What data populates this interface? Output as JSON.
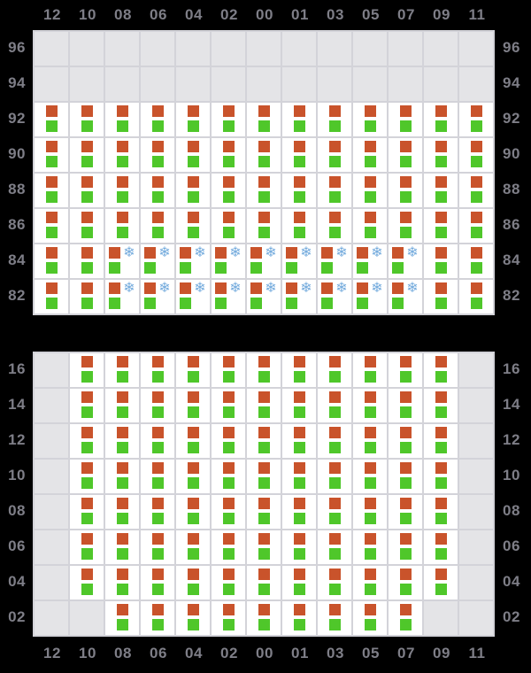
{
  "columns": [
    "12",
    "10",
    "08",
    "06",
    "04",
    "02",
    "00",
    "01",
    "03",
    "05",
    "07",
    "09",
    "11"
  ],
  "icons": {
    "snowflake_glyph": "❄",
    "orange_square": "orange-square-icon",
    "green_square": "green-square-icon"
  },
  "colors": {
    "background": "#000000",
    "empty_cell": "#e4e4e7",
    "filled_cell": "#ffffff",
    "grid_line": "#d3d3d9",
    "label_text": "#7e7e87",
    "orange": "#c9532b",
    "green": "#4fc72a",
    "snowflake_blue": "#74abdd"
  },
  "panels": [
    {
      "name": "upper",
      "rows": [
        {
          "label": "96",
          "cells": [
            "",
            "",
            "",
            "",
            "",
            "",
            "",
            "",
            "",
            "",
            "",
            "",
            ""
          ]
        },
        {
          "label": "94",
          "cells": [
            "",
            "",
            "",
            "",
            "",
            "",
            "",
            "",
            "",
            "",
            "",
            "",
            ""
          ]
        },
        {
          "label": "92",
          "cells": [
            "og",
            "og",
            "og",
            "og",
            "og",
            "og",
            "og",
            "og",
            "og",
            "og",
            "og",
            "og",
            "og"
          ]
        },
        {
          "label": "90",
          "cells": [
            "og",
            "og",
            "og",
            "og",
            "og",
            "og",
            "og",
            "og",
            "og",
            "og",
            "og",
            "og",
            "og"
          ]
        },
        {
          "label": "88",
          "cells": [
            "og",
            "og",
            "og",
            "og",
            "og",
            "og",
            "og",
            "og",
            "og",
            "og",
            "og",
            "og",
            "og"
          ]
        },
        {
          "label": "86",
          "cells": [
            "og",
            "og",
            "og",
            "og",
            "og",
            "og",
            "og",
            "og",
            "og",
            "og",
            "og",
            "og",
            "og"
          ]
        },
        {
          "label": "84",
          "cells": [
            "og",
            "og",
            "ogs",
            "ogs",
            "ogs",
            "ogs",
            "ogs",
            "ogs",
            "ogs",
            "ogs",
            "ogs",
            "og",
            "og"
          ]
        },
        {
          "label": "82",
          "cells": [
            "og",
            "og",
            "ogs",
            "ogs",
            "ogs",
            "ogs",
            "ogs",
            "ogs",
            "ogs",
            "ogs",
            "ogs",
            "og",
            "og"
          ]
        }
      ]
    },
    {
      "name": "lower",
      "rows": [
        {
          "label": "16",
          "cells": [
            "",
            "og",
            "og",
            "og",
            "og",
            "og",
            "og",
            "og",
            "og",
            "og",
            "og",
            "og",
            ""
          ]
        },
        {
          "label": "14",
          "cells": [
            "",
            "og",
            "og",
            "og",
            "og",
            "og",
            "og",
            "og",
            "og",
            "og",
            "og",
            "og",
            ""
          ]
        },
        {
          "label": "12",
          "cells": [
            "",
            "og",
            "og",
            "og",
            "og",
            "og",
            "og",
            "og",
            "og",
            "og",
            "og",
            "og",
            ""
          ]
        },
        {
          "label": "10",
          "cells": [
            "",
            "og",
            "og",
            "og",
            "og",
            "og",
            "og",
            "og",
            "og",
            "og",
            "og",
            "og",
            ""
          ]
        },
        {
          "label": "08",
          "cells": [
            "",
            "og",
            "og",
            "og",
            "og",
            "og",
            "og",
            "og",
            "og",
            "og",
            "og",
            "og",
            ""
          ]
        },
        {
          "label": "06",
          "cells": [
            "",
            "og",
            "og",
            "og",
            "og",
            "og",
            "og",
            "og",
            "og",
            "og",
            "og",
            "og",
            ""
          ]
        },
        {
          "label": "04",
          "cells": [
            "",
            "og",
            "og",
            "og",
            "og",
            "og",
            "og",
            "og",
            "og",
            "og",
            "og",
            "og",
            ""
          ]
        },
        {
          "label": "02",
          "cells": [
            "",
            "",
            "og",
            "og",
            "og",
            "og",
            "og",
            "og",
            "og",
            "og",
            "og",
            "",
            ""
          ]
        }
      ]
    }
  ]
}
